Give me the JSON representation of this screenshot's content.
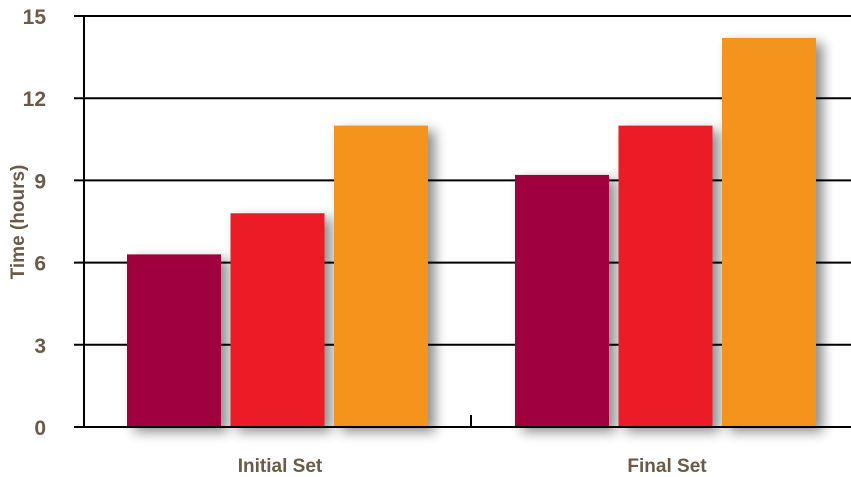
{
  "chart_data": {
    "type": "bar",
    "title": "",
    "xlabel": "",
    "ylabel": "Time (hours)",
    "categories": [
      "Initial Set",
      "Final Set"
    ],
    "series": [
      {
        "values": [
          6.3,
          9.2
        ],
        "color": "#a0003c"
      },
      {
        "values": [
          7.8,
          11.0
        ],
        "color": "#ec1f28"
      },
      {
        "values": [
          11.0,
          14.2
        ],
        "color": "#f5941d"
      }
    ],
    "ylim": [
      0,
      15
    ],
    "yticks": [
      "0",
      "3",
      "6",
      "9",
      "12",
      "15"
    ],
    "grid": true,
    "legend": "none"
  },
  "colors": {
    "text": "#6b5a48",
    "axis": "#000000",
    "shadow": "#9a9a9a"
  }
}
